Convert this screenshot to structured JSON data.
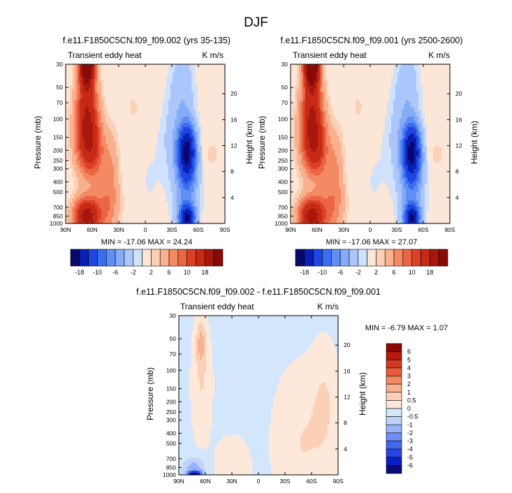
{
  "figure_title": "DJF",
  "colors": {
    "main_scale": [
      "#08086e",
      "#0a1fb4",
      "#1f46e0",
      "#3a6ef0",
      "#5f8ff5",
      "#86acf8",
      "#aac6fa",
      "#cfe1fb",
      "#fbe6d8",
      "#fcd0b4",
      "#f9b08e",
      "#f48a64",
      "#ea6543",
      "#dc4128",
      "#c62a17",
      "#a8170c",
      "#870a06"
    ],
    "diff_scale": [
      "#08086e",
      "#0a1fb4",
      "#1f46e0",
      "#3a6ef0",
      "#5f8ff5",
      "#86acf8",
      "#aac6fa",
      "#cfe1fb",
      "#fbe6d8",
      "#fcd0b4",
      "#f9b08e",
      "#f48a64",
      "#ea6543",
      "#dc4128",
      "#c62a17",
      "#a8170c",
      "#870a06"
    ]
  },
  "chart_data": [
    {
      "type": "heatmap",
      "title": "f.e11.F1850C5CN.f09_f09.002 (yrs 35-135)",
      "left_label": "Transient eddy heat",
      "right_label": "K m/s",
      "xlabel": "",
      "ylabel": "Pressure (mb)",
      "ylabel_right": "Height (km)",
      "x_ticks": [
        "90N",
        "60N",
        "30N",
        "0",
        "30S",
        "60S",
        "90S"
      ],
      "y_ticks": [
        "30",
        "50",
        "70",
        "100",
        "150",
        "200",
        "250",
        "300",
        "400",
        "500",
        "700",
        "850",
        "1000"
      ],
      "height_ticks": [
        "20",
        "16",
        "12",
        "8",
        "4"
      ],
      "min_max": "MIN = -17.06  MAX = 24.24",
      "colorbar_labels": [
        "-18",
        "-10",
        "-6",
        "-2",
        "2",
        "6",
        "10",
        "18"
      ],
      "levels": [
        -18,
        -14,
        -10,
        -8,
        -6,
        -4,
        -2,
        -1,
        1,
        2,
        4,
        6,
        8,
        10,
        14,
        18
      ],
      "features": [
        {
          "lat": 66,
          "p": 30,
          "value": 24.2
        },
        {
          "lat": 66,
          "p": 100,
          "value": 14
        },
        {
          "lat": 62,
          "p": 200,
          "value": 12
        },
        {
          "lat": 66,
          "p": 850,
          "value": 16
        },
        {
          "lat": 40,
          "p": 500,
          "value": 3
        },
        {
          "lat": 10,
          "p": 100,
          "value": 1.5
        },
        {
          "lat": -47,
          "p": 200,
          "value": -17
        },
        {
          "lat": -47,
          "p": 900,
          "value": -16
        },
        {
          "lat": -47,
          "p": 50,
          "value": -3
        }
      ]
    },
    {
      "type": "heatmap",
      "title": "f.e11.F1850C5CN.f09_f09.001 (yrs 2500-2600)",
      "left_label": "Transient eddy heat",
      "right_label": "K m/s",
      "xlabel": "",
      "ylabel": "Pressure (mb)",
      "ylabel_right": "Height (km)",
      "x_ticks": [
        "90N",
        "60N",
        "30N",
        "0",
        "30S",
        "60S",
        "90S"
      ],
      "y_ticks": [
        "30",
        "50",
        "70",
        "100",
        "150",
        "200",
        "250",
        "300",
        "400",
        "500",
        "700",
        "850",
        "1000"
      ],
      "height_ticks": [
        "20",
        "16",
        "12",
        "8",
        "4"
      ],
      "min_max": "MIN = -17.06  MAX = 27.07",
      "colorbar_labels": [
        "-18",
        "-10",
        "-6",
        "-2",
        "2",
        "6",
        "10",
        "18"
      ],
      "levels": [
        -18,
        -14,
        -10,
        -8,
        -6,
        -4,
        -2,
        -1,
        1,
        2,
        4,
        6,
        8,
        10,
        14,
        18
      ],
      "features": [
        {
          "lat": 66,
          "p": 30,
          "value": 27.1
        },
        {
          "lat": 66,
          "p": 100,
          "value": 14
        },
        {
          "lat": 62,
          "p": 200,
          "value": 12
        },
        {
          "lat": 66,
          "p": 850,
          "value": 16
        },
        {
          "lat": 40,
          "p": 500,
          "value": 3
        },
        {
          "lat": 10,
          "p": 100,
          "value": 1.5
        },
        {
          "lat": -47,
          "p": 200,
          "value": -17
        },
        {
          "lat": -47,
          "p": 900,
          "value": -16
        },
        {
          "lat": -47,
          "p": 50,
          "value": -3
        }
      ]
    },
    {
      "type": "heatmap",
      "title": "f.e11.F1850C5CN.f09_f09.002 - f.e11.F1850C5CN.f09_f09.001",
      "left_label": "Transient eddy heat",
      "right_label": "K m/s",
      "xlabel": "",
      "ylabel": "Pressure (mb)",
      "ylabel_right": "Height (km)",
      "x_ticks": [
        "90N",
        "60N",
        "30N",
        "0",
        "30S",
        "60S",
        "90S"
      ],
      "y_ticks": [
        "30",
        "50",
        "70",
        "100",
        "150",
        "200",
        "250",
        "300",
        "400",
        "500",
        "700",
        "850",
        "1000"
      ],
      "height_ticks": [
        "20",
        "16",
        "12",
        "8",
        "4"
      ],
      "min_max": "MIN =  -6.79  MAX =   1.07",
      "colorbar_labels": [
        "6",
        "5",
        "4",
        "3",
        "2",
        "1",
        "0.5",
        "0",
        "-0.5",
        "-1",
        "-2",
        "-3",
        "-4",
        "-5",
        "-6"
      ],
      "levels": [
        -6,
        -5,
        -4,
        -3,
        -2,
        -1,
        -0.5,
        0,
        0.5,
        1,
        2,
        3,
        4,
        5,
        6
      ],
      "features": [
        {
          "lat": 65,
          "p": 50,
          "value": 1.07
        },
        {
          "lat": 62,
          "p": 120,
          "value": 0.4
        },
        {
          "lat": 70,
          "p": 980,
          "value": -6.79
        },
        {
          "lat": 75,
          "p": 850,
          "value": -0.8
        },
        {
          "lat": -50,
          "p": 400,
          "value": 0.2
        }
      ]
    }
  ]
}
